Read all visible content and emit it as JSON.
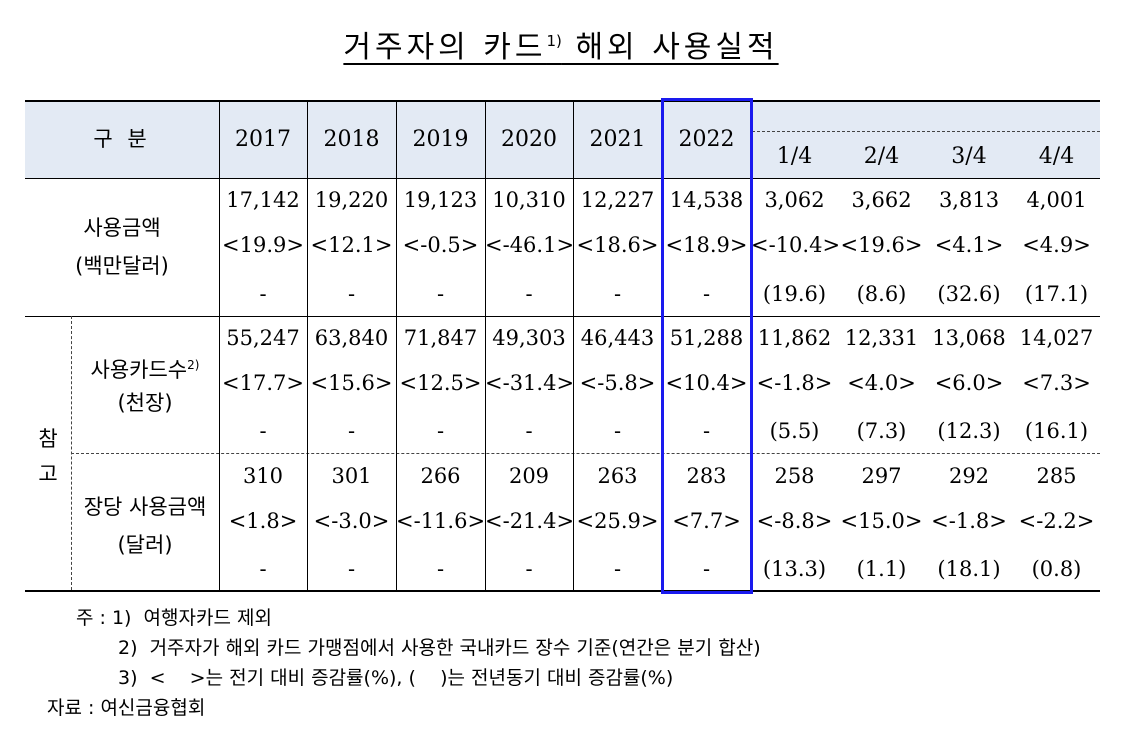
{
  "title": {
    "text": "거주자의 카드",
    "sup": "1)",
    "rest": " 해외 사용실적"
  },
  "header": {
    "category": "구  분",
    "years": [
      "2017",
      "2018",
      "2019",
      "2020",
      "2021",
      "2022"
    ],
    "quarters": [
      "1/4",
      "2/4",
      "3/4",
      "4/4"
    ]
  },
  "rows": {
    "amount": {
      "label": "사용금액",
      "unit": "(백만달러)",
      "values": [
        "17,142",
        "19,220",
        "19,123",
        "10,310",
        "12,227",
        "14,538",
        "3,062",
        "3,662",
        "3,813",
        "4,001"
      ],
      "qoq": [
        "<19.9>",
        "<12.1>",
        "<-0.5>",
        "<-46.1>",
        "<18.6>",
        "<18.9>",
        "<-10.4>",
        "<19.6>",
        "<4.1>",
        "<4.9>"
      ],
      "yoy": [
        "-",
        "-",
        "-",
        "-",
        "-",
        "-",
        "(19.6)",
        "(8.6)",
        "(32.6)",
        "(17.1)"
      ]
    },
    "reference_label": [
      "참",
      "고"
    ],
    "cards": {
      "label": "사용카드수",
      "sup": "2)",
      "unit": "(천장)",
      "values": [
        "55,247",
        "63,840",
        "71,847",
        "49,303",
        "46,443",
        "51,288",
        "11,862",
        "12,331",
        "13,068",
        "14,027"
      ],
      "qoq": [
        "<17.7>",
        "<15.6>",
        "<12.5>",
        "<-31.4>",
        "<-5.8>",
        "<10.4>",
        "<-1.8>",
        "<4.0>",
        "<6.0>",
        "<7.3>"
      ],
      "yoy": [
        "-",
        "-",
        "-",
        "-",
        "-",
        "-",
        "(5.5)",
        "(7.3)",
        "(12.3)",
        "(16.1)"
      ]
    },
    "per_card": {
      "label": "장당 사용금액",
      "unit": "(달러)",
      "values": [
        "310",
        "301",
        "266",
        "209",
        "263",
        "283",
        "258",
        "297",
        "292",
        "285"
      ],
      "qoq": [
        "<1.8>",
        "<-3.0>",
        "<-11.6>",
        "<-21.4>",
        "<25.9>",
        "<7.7>",
        "<-8.8>",
        "<15.0>",
        "<-1.8>",
        "<-2.2>"
      ],
      "yoy": [
        "-",
        "-",
        "-",
        "-",
        "-",
        "-",
        "(13.3)",
        "(1.1)",
        "(18.1)",
        "(0.8)"
      ]
    }
  },
  "notes": {
    "prefix": "주 : ",
    "n1": "1)  여행자카드 제외",
    "n2": "2)  거주자가 해외 카드 가맹점에서 사용한 국내카드 장수 기준(연간은 분기 합산)",
    "n3": "3)  <    >는 전기 대비 증감률(%), (    )는 전년동기 대비 증감률(%)",
    "source": "자료 : 여신금융협회"
  }
}
